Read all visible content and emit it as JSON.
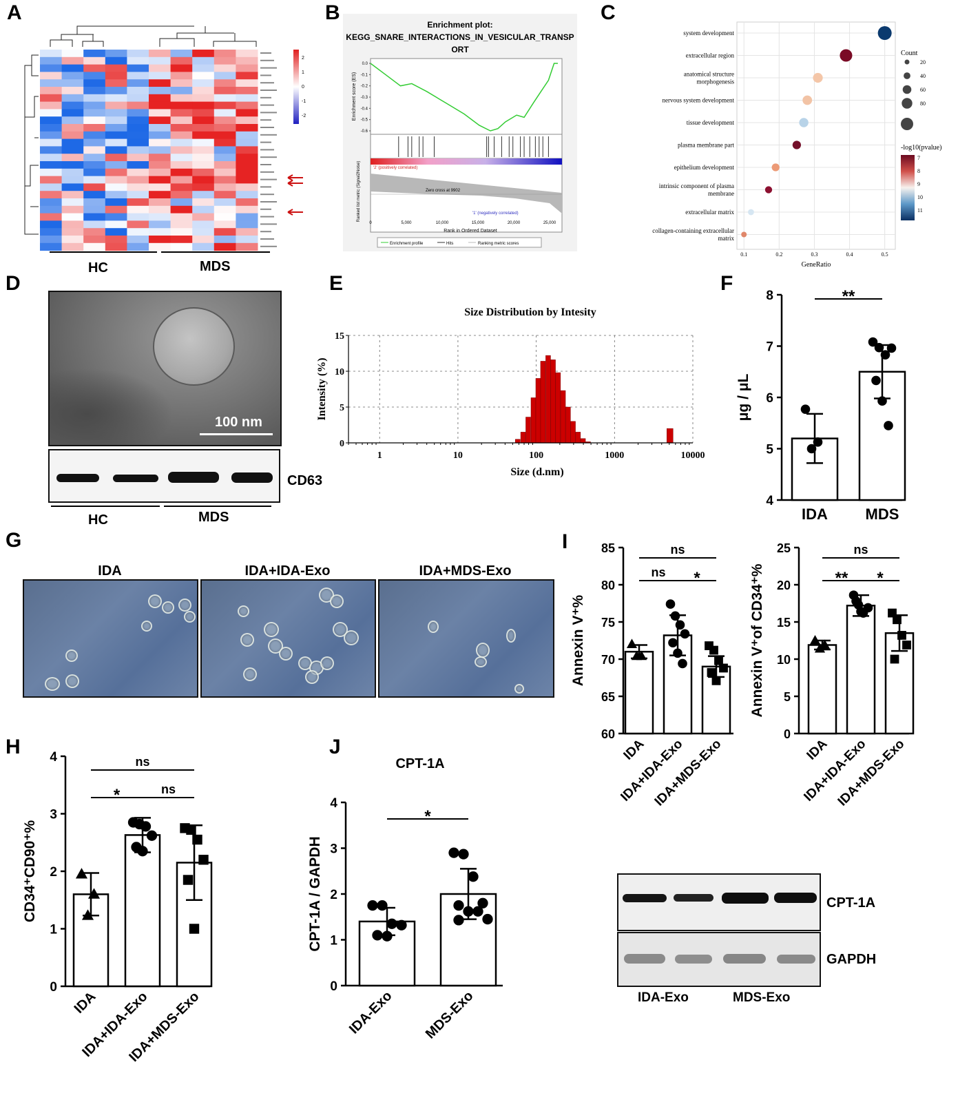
{
  "panels": {
    "A": {
      "label": "A",
      "groups": [
        "HC",
        "MDS"
      ],
      "legend_ticks": [
        "2",
        "1",
        "0",
        "-1",
        "-2"
      ]
    },
    "B": {
      "label": "B",
      "title_lines": [
        "Enrichment plot:",
        "KEGG_SNARE_INTERACTIONS_IN_VESICULAR_TRANSP",
        "ORT"
      ],
      "es_ylabel": "Enrichment score (ES)",
      "metric_ylabel": "Ranked list metric (Signal2Noise)",
      "xlabel": "Rank in Ordered Dataset",
      "es_ticks": [
        "0.0",
        "-0.1",
        "-0.2",
        "-0.3",
        "-0.4",
        "-0.5",
        "-0.6"
      ],
      "x_ticks": [
        "0",
        "5,000",
        "10,000",
        "15,000",
        "20,000",
        "25,000"
      ],
      "pos_label": "'2' (positively correlated)",
      "neg_label": "'1' (negatively correlated)",
      "zero_cross": "Zero cross at 9902",
      "legend": [
        "Enrichment profile",
        "Hits",
        "Ranking metric scores"
      ]
    },
    "C": {
      "label": "C",
      "xlabel": "GeneRatio",
      "count_title": "Count",
      "pval_title": "-log10(pvalue)",
      "count_ticks": [
        "20",
        "40",
        "60",
        "80"
      ],
      "pval_ticks": [
        "7",
        "8",
        "9",
        "10",
        "11"
      ],
      "x_ticks": [
        "0.1",
        "0.2",
        "0.3",
        "0.4",
        "0.5"
      ]
    },
    "D": {
      "label": "D",
      "scale": "100 nm",
      "blot_label": "CD63",
      "groups": [
        "HC",
        "MDS"
      ]
    },
    "E": {
      "label": "E",
      "title": "Size Distribution by Intesity",
      "xlabel": "Size (d.nm)",
      "ylabel": "Intensity (%)"
    },
    "F": {
      "label": "F",
      "ylabel": "μg / μL",
      "sig": "**"
    },
    "G": {
      "label": "G",
      "titles": [
        "IDA",
        "IDA+IDA-Exo",
        "IDA+MDS-Exo"
      ]
    },
    "H": {
      "label": "H",
      "ylabel": "CD34⁺CD90⁺%",
      "sigs": [
        "ns",
        "*",
        "ns"
      ]
    },
    "I": {
      "label": "I",
      "ylabel_left": "Annexin V⁺%",
      "ylabel_right": "Annexin V⁺of CD34⁺%",
      "sigs_left": [
        "ns",
        "ns",
        "*"
      ],
      "sigs_right": [
        "ns",
        "**",
        "*"
      ]
    },
    "J": {
      "label": "J",
      "title": "CPT-1A",
      "ylabel": "CPT-1A / GAPDH",
      "sig": "*",
      "blot_labels": [
        "CPT-1A",
        "GAPDH"
      ],
      "blot_groups": [
        "IDA-Exo",
        "MDS-Exo"
      ]
    }
  },
  "chart_data": [
    {
      "panel": "C",
      "type": "scatter",
      "xlabel": "GeneRatio",
      "xlim": [
        0.08,
        0.53
      ],
      "terms": [
        "system development",
        "extracellular region",
        "anatomical structure morphogenesis",
        "nervous system development",
        "tissue development",
        "plasma membrane part",
        "epithelium development",
        "intrinsic component of plasma membrane",
        "extracellular matrix",
        "collagen-containing extracellular matrix"
      ],
      "gene_ratio": [
        0.5,
        0.39,
        0.31,
        0.28,
        0.27,
        0.25,
        0.19,
        0.17,
        0.12,
        0.1
      ],
      "count": [
        80,
        70,
        50,
        48,
        46,
        40,
        35,
        30,
        22,
        18
      ],
      "neg_log10_p": [
        11,
        7,
        8,
        8,
        10,
        7,
        8,
        7,
        10,
        8
      ],
      "count_colors": [
        "#0b3a6e",
        "#7a0a25",
        "#f4c6a8",
        "#f2c3a5",
        "#b8d3e8",
        "#74102a",
        "#ec9a76",
        "#8c1030",
        "#d6e6f2",
        "#e0876a"
      ]
    },
    {
      "panel": "E",
      "type": "bar",
      "title": "Size Distribution by Intesity",
      "xlabel": "Size (d.nm)",
      "ylabel": "Intensity (%)",
      "xscale": "log",
      "xlim": [
        0.4,
        10000
      ],
      "ylim": [
        0,
        15
      ],
      "x_ticks": [
        "1",
        "10",
        "100",
        "1000",
        "10000"
      ],
      "y_ticks": [
        "0",
        "5",
        "10",
        "15"
      ],
      "sizes": [
        58,
        68,
        79,
        92,
        106,
        122,
        142,
        164,
        190,
        220,
        255,
        295,
        342,
        396,
        460,
        5100
      ],
      "values": [
        0.5,
        1.5,
        3.6,
        6.3,
        9.0,
        11.4,
        12.2,
        11.6,
        9.8,
        7.3,
        5.0,
        3.0,
        1.5,
        0.6,
        0.15,
        2.0
      ],
      "color": "#cc0000"
    },
    {
      "panel": "F",
      "type": "bar",
      "categories": [
        "IDA",
        "MDS"
      ],
      "ylabel": "μg / μL",
      "ylim": [
        4,
        8
      ],
      "y_ticks": [
        "4",
        "5",
        "6",
        "7",
        "8"
      ],
      "means": [
        5.2,
        6.5
      ],
      "errors": [
        0.48,
        0.52
      ],
      "points": [
        [
          5.77,
          5.0,
          5.13
        ],
        [
          7.08,
          6.97,
          6.83,
          6.96,
          6.33,
          5.93,
          5.45
        ]
      ]
    },
    {
      "panel": "I-left",
      "type": "bar",
      "categories": [
        "IDA",
        "IDA+IDA-Exo",
        "IDA+MDS-Exo"
      ],
      "ylabel": "Annexin V⁺%",
      "ylim": [
        60,
        85
      ],
      "y_ticks": [
        "60",
        "65",
        "70",
        "75",
        "80",
        "85"
      ],
      "means": [
        71.0,
        73.2,
        69.0
      ],
      "errors": [
        0.9,
        2.7,
        1.4
      ],
      "points": [
        [
          72.0,
          70.4,
          70.4
        ],
        [
          77.4,
          75.8,
          74.6,
          73.4,
          72.2,
          70.8,
          69.4
        ],
        [
          71.8,
          71.2,
          69.8,
          68.8,
          68.2,
          67.1
        ]
      ],
      "markers": [
        "triangle",
        "circle",
        "square"
      ]
    },
    {
      "panel": "I-right",
      "type": "bar",
      "categories": [
        "IDA",
        "IDA+IDA-Exo",
        "IDA+MDS-Exo"
      ],
      "ylabel": "Annexin V⁺of CD34⁺%",
      "ylim": [
        0,
        25
      ],
      "y_ticks": [
        "0",
        "5",
        "10",
        "15",
        "20",
        "25"
      ],
      "means": [
        11.9,
        17.2,
        13.5
      ],
      "errors": [
        0.6,
        1.4,
        2.4
      ],
      "points": [
        [
          12.5,
          11.4,
          11.9
        ],
        [
          18.6,
          17.3,
          16.2,
          16.9,
          17.8,
          16.4
        ],
        [
          16.2,
          15.3,
          13.2,
          11.9,
          10.0
        ]
      ],
      "markers": [
        "triangle",
        "circle",
        "square"
      ]
    },
    {
      "panel": "H",
      "type": "bar",
      "categories": [
        "IDA",
        "IDA+IDA-Exo",
        "IDA+MDS-Exo"
      ],
      "ylabel": "CD34⁺CD90⁺%",
      "ylim": [
        0,
        4
      ],
      "y_ticks": [
        "0",
        "1",
        "2",
        "3",
        "4"
      ],
      "means": [
        1.6,
        2.63,
        2.15
      ],
      "errors": [
        0.37,
        0.3,
        0.65
      ],
      "points": [
        [
          1.95,
          1.23,
          1.6
        ],
        [
          2.85,
          2.82,
          2.78,
          2.62,
          2.42,
          2.35
        ],
        [
          2.75,
          2.72,
          2.55,
          2.2,
          1.85,
          1.0
        ]
      ],
      "markers": [
        "triangle",
        "circle",
        "square"
      ]
    },
    {
      "panel": "J",
      "type": "bar",
      "categories": [
        "IDA-Exo",
        "MDS-Exo"
      ],
      "title": "CPT-1A",
      "ylabel": "CPT-1A / GAPDH",
      "ylim": [
        0,
        4
      ],
      "y_ticks": [
        "0",
        "1",
        "2",
        "3",
        "4"
      ],
      "means": [
        1.4,
        2.0
      ],
      "errors": [
        0.3,
        0.55
      ],
      "points": [
        [
          1.75,
          1.75,
          1.35,
          1.32,
          1.1,
          1.08
        ],
        [
          2.9,
          2.87,
          2.38,
          1.8,
          1.75,
          1.62,
          1.62,
          1.45,
          1.43
        ]
      ],
      "markers": [
        "circle",
        "circle"
      ]
    }
  ]
}
